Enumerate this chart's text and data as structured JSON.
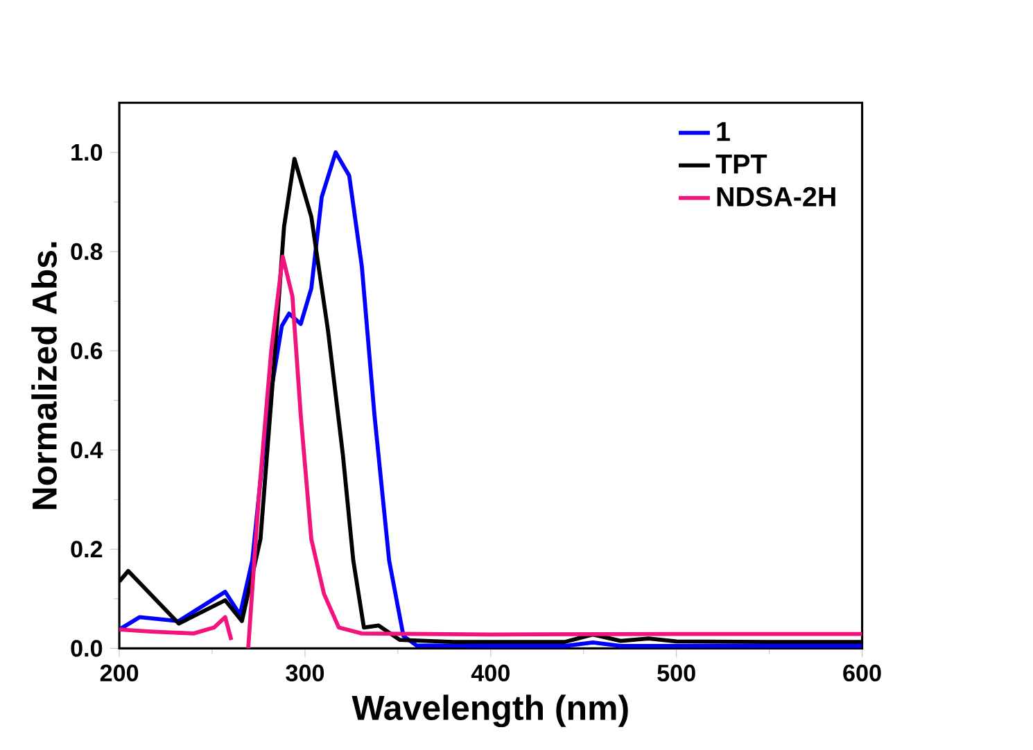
{
  "chart_data": {
    "type": "line",
    "xlabel": "Wavelength (nm)",
    "ylabel": "Normalized Abs.",
    "xlim": [
      200,
      600
    ],
    "ylim": [
      0,
      1.1
    ],
    "xticks": [
      200,
      300,
      400,
      500,
      600
    ],
    "yticks": [
      {
        "value": 0,
        "label": "0.0"
      },
      {
        "value": 0.2,
        "label": "0.2"
      },
      {
        "value": 0.4,
        "label": "0.4"
      },
      {
        "value": 0.6,
        "label": "0.6"
      },
      {
        "value": 0.8,
        "label": "0.8"
      },
      {
        "value": 1.0,
        "label": "1.0"
      }
    ],
    "legend": "top right",
    "grid": false,
    "marker": "none",
    "line_style": "solid",
    "series": [
      {
        "name": "1",
        "color": "#0000ff",
        "x": [
          200,
          211,
          232,
          257,
          265,
          271.6,
          279.6,
          287.5,
          291.4,
          297.7,
          303.4,
          309,
          316.5,
          323.8,
          330.6,
          337.4,
          345.3,
          353,
          360,
          400,
          440,
          455,
          470,
          500,
          550,
          600
        ],
        "values": [
          0.038,
          0.063,
          0.055,
          0.114,
          0.068,
          0.177,
          0.47,
          0.65,
          0.675,
          0.654,
          0.726,
          0.91,
          1.0,
          0.953,
          0.77,
          0.47,
          0.177,
          0.025,
          0.006,
          0.005,
          0.005,
          0.012,
          0.005,
          0.005,
          0.005,
          0.005
        ]
      },
      {
        "name": "TPT",
        "color": "#000000",
        "x": [
          200,
          204.8,
          232,
          257,
          266,
          276,
          283,
          288.7,
          294.3,
          303.4,
          312.4,
          320.4,
          326,
          331.7,
          339.6,
          351,
          380,
          440,
          455,
          470,
          485,
          500,
          550,
          600
        ],
        "values": [
          0.135,
          0.156,
          0.05,
          0.097,
          0.055,
          0.22,
          0.557,
          0.85,
          0.987,
          0.87,
          0.64,
          0.39,
          0.177,
          0.042,
          0.046,
          0.017,
          0.013,
          0.013,
          0.028,
          0.015,
          0.02,
          0.014,
          0.013,
          0.013
        ]
      },
      {
        "name": "NDSA-2H",
        "color": "#f0147c",
        "x": [
          200,
          217,
          240,
          251,
          257,
          260.3,
          262,
          268,
          269.4,
          275,
          281.8,
          288,
          293.2,
          297.7,
          303.4,
          310.2,
          318.2,
          330.6,
          400,
          500,
          600
        ],
        "values": [
          0.038,
          0.034,
          0.03,
          0.042,
          0.063,
          0.017,
          null,
          null,
          0,
          0.3,
          0.6,
          0.79,
          0.71,
          0.47,
          0.22,
          0.11,
          0.042,
          0.03,
          0.028,
          0.029,
          0.029
        ]
      }
    ]
  }
}
